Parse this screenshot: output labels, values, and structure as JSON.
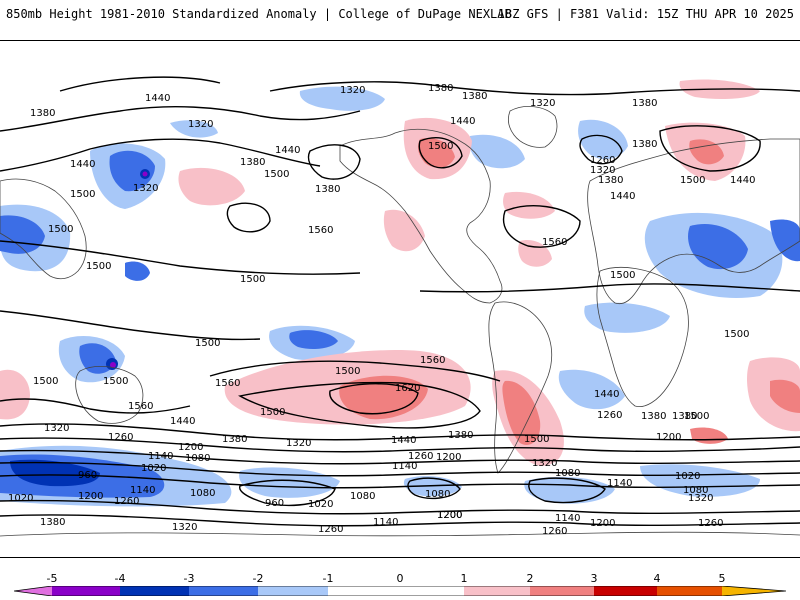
{
  "header": {
    "title": "850mb Height 1981-2010 Standardized Anomaly | College of DuPage NEXLAB",
    "run_info": "18Z GFS | F381 Valid: 15Z THU APR 10 2025"
  },
  "map": {
    "contour_color": "#000000",
    "coastline_color": "#444444",
    "contour_labels": [
      "1440",
      "1320",
      "1380",
      "1380",
      "1380",
      "1320",
      "1380",
      "1380",
      "1320",
      "1440",
      "1440",
      "1500",
      "1500",
      "1260",
      "1320",
      "1380",
      "1440",
      "1440",
      "1320",
      "1380",
      "1500",
      "1380",
      "1440",
      "1500",
      "1560",
      "1560",
      "1500",
      "1500",
      "1500",
      "1500",
      "1500",
      "1500",
      "1500",
      "1500",
      "1560",
      "1500",
      "1560",
      "1620",
      "1440",
      "1380",
      "1500",
      "1560",
      "1500",
      "1440",
      "1260",
      "1380",
      "1500",
      "1320",
      "1260",
      "1380",
      "1320",
      "1440",
      "1380",
      "1200",
      "1200",
      "1080",
      "1140",
      "1260",
      "1200",
      "1320",
      "960",
      "1020",
      "1140",
      "1080",
      "1140",
      "1020",
      "1080",
      "1020",
      "1200",
      "1260",
      "960",
      "1020",
      "1080",
      "1080",
      "1080",
      "1140",
      "1200",
      "1320",
      "1380",
      "1320",
      "1260",
      "1140",
      "1200",
      "1140",
      "1200",
      "1260",
      "1260"
    ]
  },
  "legend": {
    "tick_labels": [
      "-5",
      "-4",
      "-3",
      "-2",
      "-1",
      "0",
      "1",
      "2",
      "3",
      "4",
      "5"
    ],
    "colors": {
      "neg5": "#e070e0",
      "neg4": "#8a00c8",
      "neg3": "#0032b4",
      "neg2": "#3c6ee6",
      "neg1": "#a8c8f8",
      "zero": "#ffffff",
      "pos1": "#f8c0c8",
      "pos2": "#f08080",
      "pos3": "#c80000",
      "pos4": "#e65000",
      "pos5": "#f5b400"
    }
  }
}
